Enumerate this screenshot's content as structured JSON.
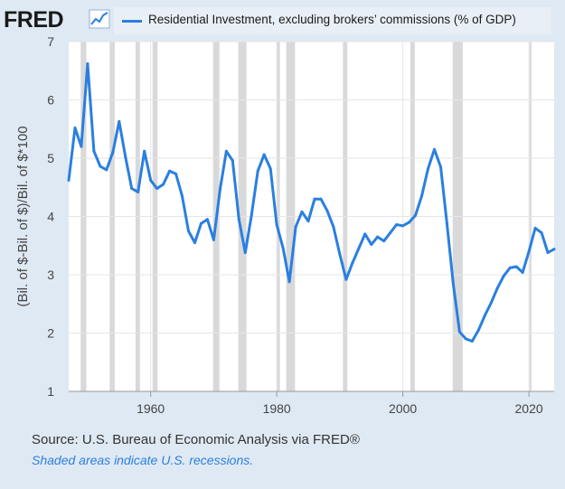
{
  "header": {
    "logo_text": "FRED",
    "logo_icon": "chart-line-icon"
  },
  "legend": {
    "label": "Residential Investment, excluding brokers’ commissions (% of GDP)",
    "color": "#2a7fe0"
  },
  "footer": {
    "source": "U.S. Bureau of Economic Analysis via FRED®",
    "note": "Shaded areas indicate U.S. recessions."
  },
  "colors": {
    "background": "#dfe9f3",
    "plot_background": "#ffffff",
    "recession": "#d9d9d9",
    "line": "#2a7fe0"
  },
  "chart_data": {
    "type": "line",
    "title": "Residential Investment, excluding brokers’ commissions (% of GDP)",
    "ylabel": "(Bil. of $-Bil. of $)/Bil. of $*100",
    "xlabel": "",
    "xlim": [
      1947,
      2024
    ],
    "ylim": [
      1,
      7
    ],
    "xticks": [
      1960,
      1980,
      2000,
      2020
    ],
    "yticks": [
      1,
      2,
      3,
      4,
      5,
      6,
      7
    ],
    "grid": true,
    "recessions": [
      [
        1948.9,
        1949.8
      ],
      [
        1953.5,
        1954.3
      ],
      [
        1957.6,
        1958.3
      ],
      [
        1960.3,
        1961.1
      ],
      [
        1969.9,
        1970.9
      ],
      [
        1973.9,
        1975.2
      ],
      [
        1980.0,
        1980.5
      ],
      [
        1981.5,
        1982.9
      ],
      [
        1990.5,
        1991.2
      ],
      [
        2001.2,
        2001.9
      ],
      [
        2007.9,
        2009.5
      ],
      [
        2020.1,
        2020.4
      ]
    ],
    "series": [
      {
        "name": "Residential Investment, excluding brokers’ commissions (% of GDP)",
        "x": [
          1947,
          1948,
          1949,
          1950,
          1951,
          1952,
          1953,
          1954,
          1955,
          1956,
          1957,
          1958,
          1959,
          1960,
          1961,
          1962,
          1963,
          1964,
          1965,
          1966,
          1967,
          1968,
          1969,
          1970,
          1971,
          1972,
          1973,
          1974,
          1975,
          1976,
          1977,
          1978,
          1979,
          1980,
          1981,
          1982,
          1983,
          1984,
          1985,
          1986,
          1987,
          1988,
          1989,
          1990,
          1991,
          1992,
          1993,
          1994,
          1995,
          1996,
          1997,
          1998,
          1999,
          2000,
          2001,
          2002,
          2003,
          2004,
          2005,
          2006,
          2007,
          2008,
          2009,
          2010,
          2011,
          2012,
          2013,
          2014,
          2015,
          2016,
          2017,
          2018,
          2019,
          2020,
          2021,
          2022,
          2023,
          2024
        ],
        "y": [
          4.62,
          5.52,
          5.2,
          6.62,
          5.12,
          4.86,
          4.8,
          5.1,
          5.63,
          5.02,
          4.48,
          4.42,
          5.12,
          4.62,
          4.48,
          4.55,
          4.78,
          4.73,
          4.35,
          3.75,
          3.55,
          3.88,
          3.95,
          3.6,
          4.46,
          5.12,
          4.96,
          3.95,
          3.38,
          4.02,
          4.78,
          5.06,
          4.82,
          3.86,
          3.46,
          2.88,
          3.82,
          4.08,
          3.92,
          4.3,
          4.3,
          4.1,
          3.82,
          3.35,
          2.92,
          3.2,
          3.45,
          3.7,
          3.52,
          3.65,
          3.58,
          3.72,
          3.86,
          3.84,
          3.9,
          4.02,
          4.35,
          4.82,
          5.15,
          4.85,
          3.88,
          2.84,
          2.02,
          1.9,
          1.86,
          2.05,
          2.3,
          2.52,
          2.77,
          2.98,
          3.12,
          3.14,
          3.04,
          3.4,
          3.8,
          3.72,
          3.38,
          3.44
        ]
      }
    ]
  }
}
